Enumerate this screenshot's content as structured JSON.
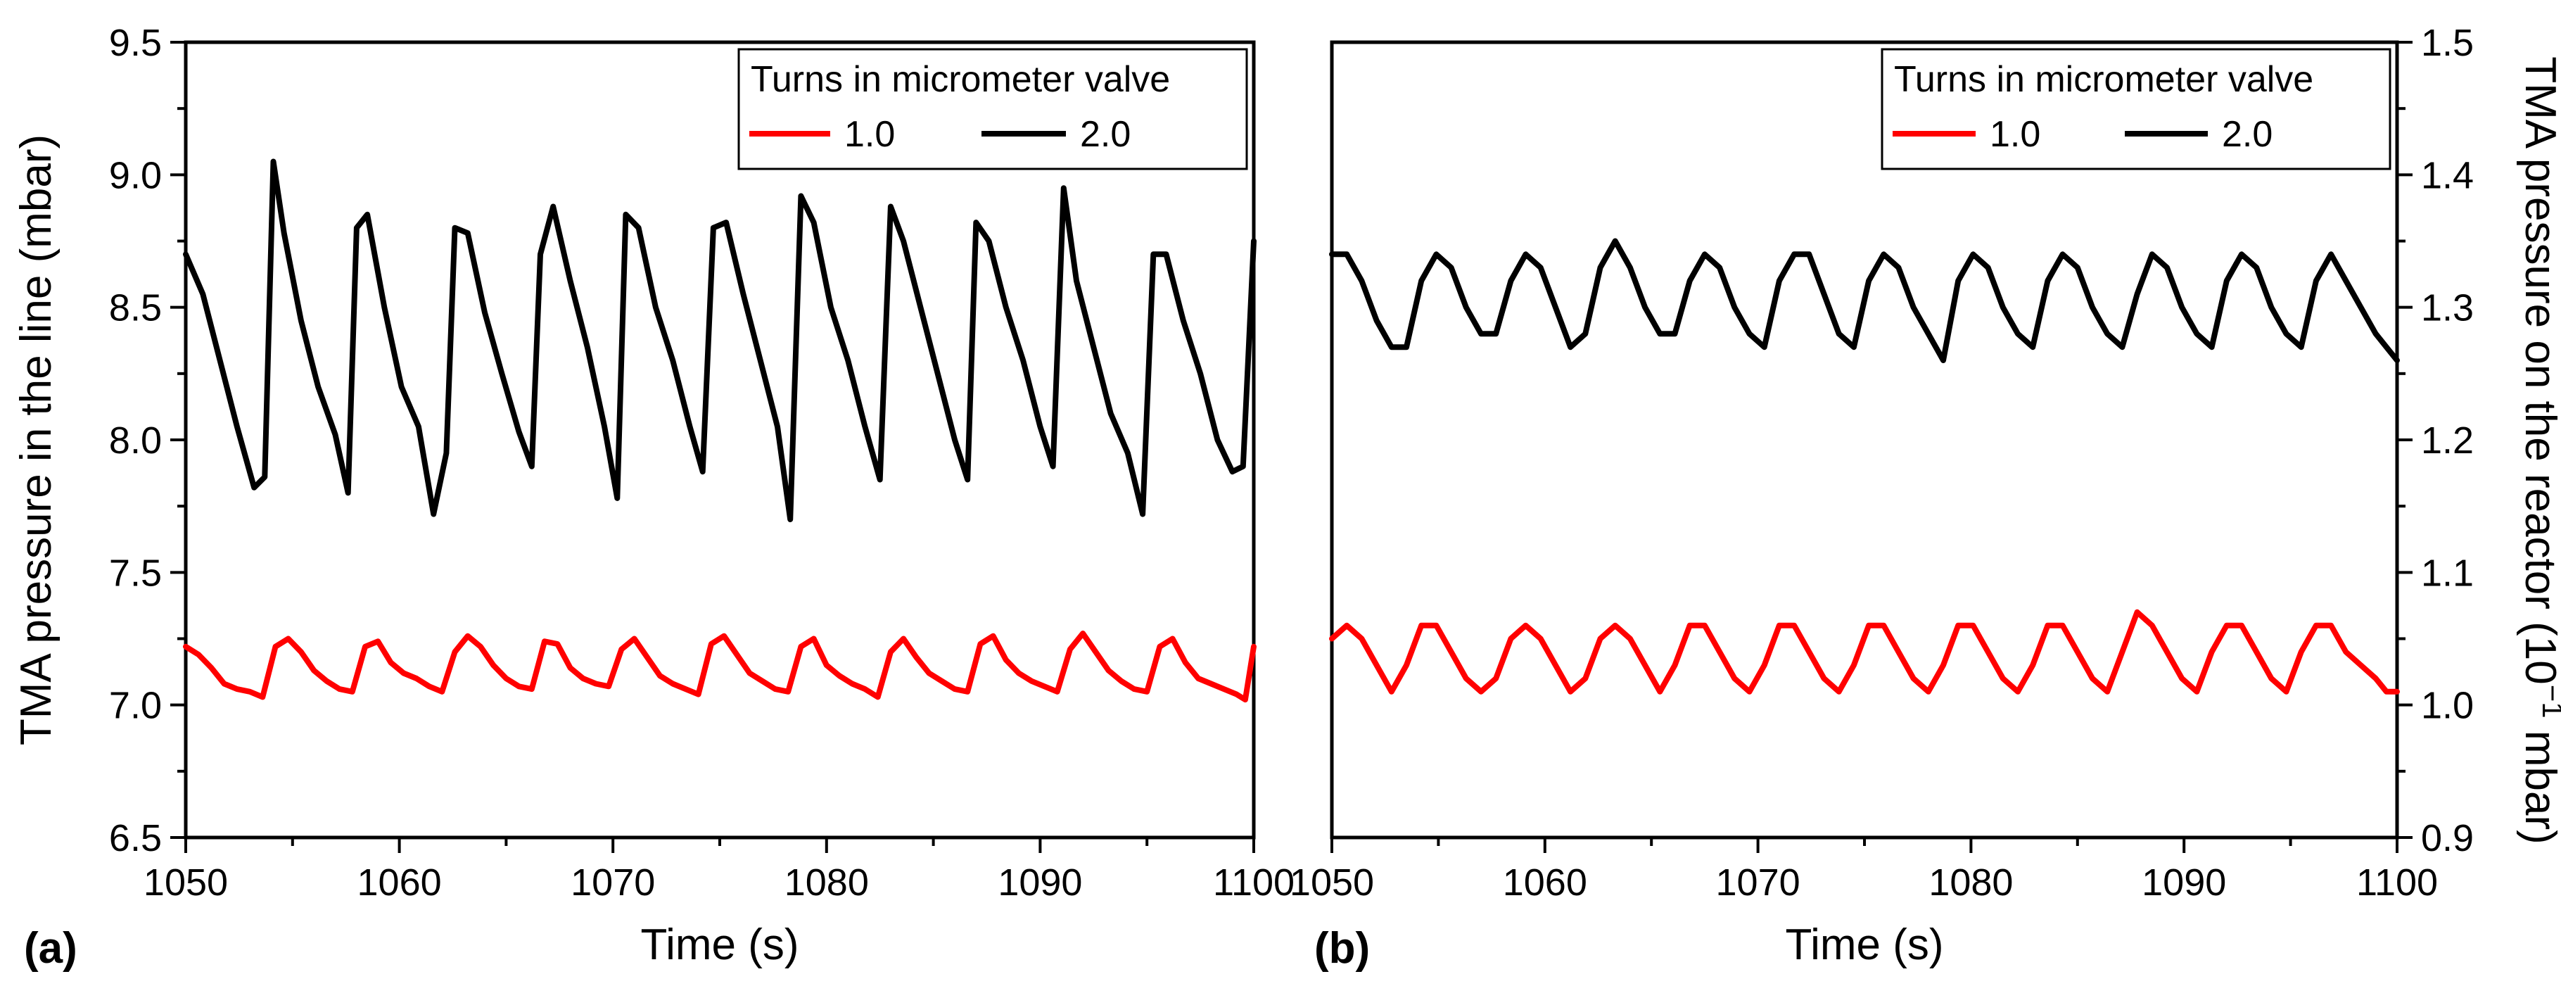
{
  "chart_data": [
    {
      "type": "line",
      "panel_label": "(a)",
      "xlabel": "Time (s)",
      "ylabel": "TMA pressure in the line (mbar)",
      "xlim": [
        1050,
        1100
      ],
      "ylim": [
        6.5,
        9.5
      ],
      "xticks": [
        1050,
        1060,
        1070,
        1080,
        1090,
        1100
      ],
      "yticks": [
        "6.5",
        "7.0",
        "7.5",
        "8.0",
        "8.5",
        "9.0",
        "9.5"
      ],
      "legend": {
        "title": "Turns in micrometer valve",
        "position": "top-right"
      },
      "series": [
        {
          "name": "1.0",
          "color": "#ff0000",
          "x": [
            1050,
            1050.6,
            1051.2,
            1051.8,
            1052.4,
            1053,
            1053.6,
            1054.2,
            1054.8,
            1055.4,
            1056,
            1056.6,
            1057.2,
            1057.8,
            1058.4,
            1059,
            1059.6,
            1060.2,
            1060.8,
            1061.4,
            1062,
            1062.6,
            1063.2,
            1063.8,
            1064.4,
            1065,
            1065.6,
            1066.2,
            1066.8,
            1067.4,
            1068,
            1068.6,
            1069.2,
            1069.8,
            1070.4,
            1071,
            1071.6,
            1072.2,
            1072.8,
            1073.4,
            1074,
            1074.6,
            1075.2,
            1075.8,
            1076.4,
            1077,
            1077.6,
            1078.2,
            1078.8,
            1079.4,
            1080,
            1080.6,
            1081.2,
            1081.8,
            1082.4,
            1083,
            1083.6,
            1084.2,
            1084.8,
            1085.4,
            1086,
            1086.6,
            1087.2,
            1087.8,
            1088.4,
            1089,
            1089.6,
            1090.2,
            1090.8,
            1091.4,
            1092,
            1092.6,
            1093.2,
            1093.8,
            1094.4,
            1095,
            1095.6,
            1096.2,
            1096.8,
            1097.4,
            1098,
            1098.6,
            1099.2,
            1099.6,
            1100
          ],
          "values": [
            7.22,
            7.19,
            7.14,
            7.08,
            7.06,
            7.05,
            7.03,
            7.22,
            7.25,
            7.2,
            7.13,
            7.09,
            7.06,
            7.05,
            7.22,
            7.24,
            7.16,
            7.12,
            7.1,
            7.07,
            7.05,
            7.2,
            7.26,
            7.22,
            7.15,
            7.1,
            7.07,
            7.06,
            7.24,
            7.23,
            7.14,
            7.1,
            7.08,
            7.07,
            7.21,
            7.25,
            7.18,
            7.11,
            7.08,
            7.06,
            7.04,
            7.23,
            7.26,
            7.19,
            7.12,
            7.09,
            7.06,
            7.05,
            7.22,
            7.25,
            7.15,
            7.11,
            7.08,
            7.06,
            7.03,
            7.2,
            7.25,
            7.18,
            7.12,
            7.09,
            7.06,
            7.05,
            7.23,
            7.26,
            7.17,
            7.12,
            7.09,
            7.07,
            7.05,
            7.21,
            7.27,
            7.2,
            7.13,
            7.09,
            7.06,
            7.05,
            7.22,
            7.25,
            7.16,
            7.1,
            7.08,
            7.06,
            7.04,
            7.02,
            7.22
          ]
        },
        {
          "name": "2.0",
          "color": "#000000",
          "x": [
            1050,
            1050.8,
            1051.6,
            1052.4,
            1053.2,
            1053.7,
            1054.1,
            1054.6,
            1055.4,
            1056.2,
            1057,
            1057.6,
            1058,
            1058.5,
            1059.3,
            1060.1,
            1060.9,
            1061.6,
            1062.2,
            1062.6,
            1063.2,
            1064,
            1064.8,
            1065.6,
            1066.2,
            1066.6,
            1067.2,
            1068,
            1068.8,
            1069.6,
            1070.2,
            1070.6,
            1071.2,
            1072,
            1072.8,
            1073.6,
            1074.2,
            1074.7,
            1075.3,
            1076.1,
            1076.9,
            1077.7,
            1078.3,
            1078.8,
            1079.4,
            1080.2,
            1081,
            1081.8,
            1082.5,
            1083,
            1083.6,
            1084.4,
            1085.2,
            1086,
            1086.6,
            1087,
            1087.6,
            1088.4,
            1089.2,
            1090,
            1090.6,
            1091.1,
            1091.7,
            1092.5,
            1093.3,
            1094.1,
            1094.8,
            1095.3,
            1095.9,
            1096.7,
            1097.5,
            1098.3,
            1099,
            1099.5,
            1100
          ],
          "values": [
            8.7,
            8.55,
            8.3,
            8.05,
            7.82,
            7.86,
            9.05,
            8.78,
            8.45,
            8.2,
            8.02,
            7.8,
            8.8,
            8.85,
            8.5,
            8.2,
            8.05,
            7.72,
            7.95,
            8.8,
            8.78,
            8.48,
            8.25,
            8.03,
            7.9,
            8.7,
            8.88,
            8.6,
            8.35,
            8.05,
            7.78,
            8.85,
            8.8,
            8.5,
            8.3,
            8.05,
            7.88,
            8.8,
            8.82,
            8.55,
            8.3,
            8.05,
            7.7,
            8.92,
            8.82,
            8.5,
            8.3,
            8.05,
            7.85,
            8.88,
            8.75,
            8.5,
            8.25,
            8.0,
            7.85,
            8.82,
            8.75,
            8.5,
            8.3,
            8.05,
            7.9,
            8.95,
            8.6,
            8.35,
            8.1,
            7.95,
            7.72,
            8.7,
            8.7,
            8.45,
            8.25,
            8.0,
            7.88,
            7.9,
            8.75
          ]
        }
      ]
    },
    {
      "type": "line",
      "panel_label": "(b)",
      "xlabel": "Time (s)",
      "ylabel": "TMA pressure on the reactor (10",
      "ylabel_exponent": "−1",
      "ylabel_suffix": " mbar)",
      "xlim": [
        1050,
        1100
      ],
      "ylim": [
        0.9,
        1.5
      ],
      "xticks": [
        1050,
        1060,
        1070,
        1080,
        1090,
        1100
      ],
      "yticks": [
        "0.9",
        "1.0",
        "1.1",
        "1.2",
        "1.3",
        "1.4",
        "1.5"
      ],
      "legend": {
        "title": "Turns in micrometer valve",
        "position": "top-right"
      },
      "series": [
        {
          "name": "1.0",
          "color": "#ff0000",
          "x": [
            1050,
            1050.7,
            1051.4,
            1052.1,
            1052.8,
            1053.5,
            1054.2,
            1054.9,
            1055.6,
            1056.3,
            1057,
            1057.7,
            1058.4,
            1059.1,
            1059.8,
            1060.5,
            1061.2,
            1061.9,
            1062.6,
            1063.3,
            1064,
            1064.7,
            1065.4,
            1066.1,
            1066.8,
            1067.5,
            1068.2,
            1068.9,
            1069.6,
            1070.3,
            1071,
            1071.7,
            1072.4,
            1073.1,
            1073.8,
            1074.5,
            1075.2,
            1075.9,
            1076.6,
            1077.3,
            1078,
            1078.7,
            1079.4,
            1080.1,
            1080.8,
            1081.5,
            1082.2,
            1082.9,
            1083.6,
            1084.3,
            1085,
            1085.7,
            1086.4,
            1087.1,
            1087.8,
            1088.5,
            1089.2,
            1089.9,
            1090.6,
            1091.3,
            1092,
            1092.7,
            1093.4,
            1094.1,
            1094.8,
            1095.5,
            1096.2,
            1096.9,
            1097.6,
            1098.3,
            1099,
            1099.5,
            1100
          ],
          "values": [
            1.05,
            1.06,
            1.05,
            1.03,
            1.01,
            1.03,
            1.06,
            1.06,
            1.04,
            1.02,
            1.01,
            1.02,
            1.05,
            1.06,
            1.05,
            1.03,
            1.01,
            1.02,
            1.05,
            1.06,
            1.05,
            1.03,
            1.01,
            1.03,
            1.06,
            1.06,
            1.04,
            1.02,
            1.01,
            1.03,
            1.06,
            1.06,
            1.04,
            1.02,
            1.01,
            1.03,
            1.06,
            1.06,
            1.04,
            1.02,
            1.01,
            1.03,
            1.06,
            1.06,
            1.04,
            1.02,
            1.01,
            1.03,
            1.06,
            1.06,
            1.04,
            1.02,
            1.01,
            1.04,
            1.07,
            1.06,
            1.04,
            1.02,
            1.01,
            1.04,
            1.06,
            1.06,
            1.04,
            1.02,
            1.01,
            1.04,
            1.06,
            1.06,
            1.04,
            1.03,
            1.02,
            1.01,
            1.01
          ]
        },
        {
          "name": "2.0",
          "color": "#000000",
          "x": [
            1050,
            1050.7,
            1051.4,
            1052.1,
            1052.8,
            1053.5,
            1054.2,
            1054.9,
            1055.6,
            1056.3,
            1057,
            1057.7,
            1058.4,
            1059.1,
            1059.8,
            1060.5,
            1061.2,
            1061.9,
            1062.6,
            1063.3,
            1064,
            1064.7,
            1065.4,
            1066.1,
            1066.8,
            1067.5,
            1068.2,
            1068.9,
            1069.6,
            1070.3,
            1071,
            1071.7,
            1072.4,
            1073.1,
            1073.8,
            1074.5,
            1075.2,
            1075.9,
            1076.6,
            1077.3,
            1078,
            1078.7,
            1079.4,
            1080.1,
            1080.8,
            1081.5,
            1082.2,
            1082.9,
            1083.6,
            1084.3,
            1085,
            1085.7,
            1086.4,
            1087.1,
            1087.8,
            1088.5,
            1089.2,
            1089.9,
            1090.6,
            1091.3,
            1092,
            1092.7,
            1093.4,
            1094.1,
            1094.8,
            1095.5,
            1096.2,
            1096.9,
            1097.6,
            1098.3,
            1099,
            1099.5,
            1100
          ],
          "values": [
            1.34,
            1.34,
            1.32,
            1.29,
            1.27,
            1.27,
            1.32,
            1.34,
            1.33,
            1.3,
            1.28,
            1.28,
            1.32,
            1.34,
            1.33,
            1.3,
            1.27,
            1.28,
            1.33,
            1.35,
            1.33,
            1.3,
            1.28,
            1.28,
            1.32,
            1.34,
            1.33,
            1.3,
            1.28,
            1.27,
            1.32,
            1.34,
            1.34,
            1.31,
            1.28,
            1.27,
            1.32,
            1.34,
            1.33,
            1.3,
            1.28,
            1.26,
            1.32,
            1.34,
            1.33,
            1.3,
            1.28,
            1.27,
            1.32,
            1.34,
            1.33,
            1.3,
            1.28,
            1.27,
            1.31,
            1.34,
            1.33,
            1.3,
            1.28,
            1.27,
            1.32,
            1.34,
            1.33,
            1.3,
            1.28,
            1.27,
            1.32,
            1.34,
            1.32,
            1.3,
            1.28,
            1.27,
            1.26
          ]
        }
      ]
    }
  ]
}
